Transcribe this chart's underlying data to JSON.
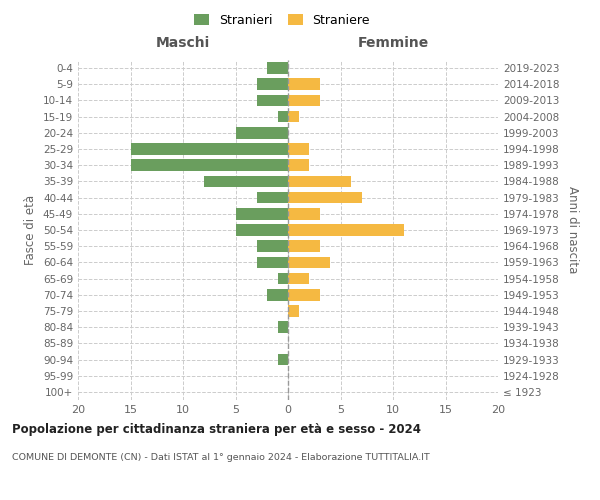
{
  "age_groups": [
    "100+",
    "95-99",
    "90-94",
    "85-89",
    "80-84",
    "75-79",
    "70-74",
    "65-69",
    "60-64",
    "55-59",
    "50-54",
    "45-49",
    "40-44",
    "35-39",
    "30-34",
    "25-29",
    "20-24",
    "15-19",
    "10-14",
    "5-9",
    "0-4"
  ],
  "birth_years": [
    "≤ 1923",
    "1924-1928",
    "1929-1933",
    "1934-1938",
    "1939-1943",
    "1944-1948",
    "1949-1953",
    "1954-1958",
    "1959-1963",
    "1964-1968",
    "1969-1973",
    "1974-1978",
    "1979-1983",
    "1984-1988",
    "1989-1993",
    "1994-1998",
    "1999-2003",
    "2004-2008",
    "2009-2013",
    "2014-2018",
    "2019-2023"
  ],
  "maschi": [
    0,
    0,
    1,
    0,
    1,
    0,
    2,
    1,
    3,
    3,
    5,
    5,
    3,
    8,
    15,
    15,
    5,
    1,
    3,
    3,
    2
  ],
  "femmine": [
    0,
    0,
    0,
    0,
    0,
    1,
    3,
    2,
    4,
    3,
    11,
    3,
    7,
    6,
    2,
    2,
    0,
    1,
    3,
    3,
    0
  ],
  "color_maschi": "#6a9e5e",
  "color_femmine": "#f5b942",
  "title": "Popolazione per cittadinanza straniera per età e sesso - 2024",
  "subtitle": "COMUNE DI DEMONTE (CN) - Dati ISTAT al 1° gennaio 2024 - Elaborazione TUTTITALIA.IT",
  "xlabel_left": "Maschi",
  "xlabel_right": "Femmine",
  "ylabel_left": "Fasce di età",
  "ylabel_right": "Anni di nascita",
  "xlim": 20,
  "legend_stranieri": "Stranieri",
  "legend_straniere": "Straniere",
  "bg_color": "#ffffff",
  "grid_color": "#cccccc"
}
